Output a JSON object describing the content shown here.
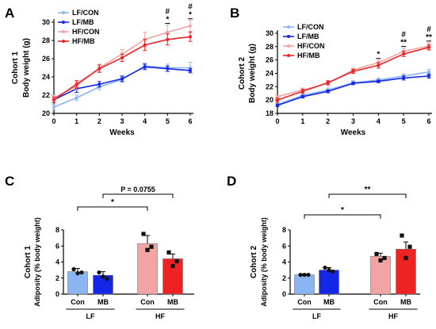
{
  "panel_labels": [
    "A",
    "B",
    "C",
    "D"
  ],
  "palette": {
    "LF/CON": "#8ab4f2",
    "LF/MB": "#1427e8",
    "HF/CON": "#f2a3a3",
    "HF/MB": "#ee2222"
  },
  "chart_data": [
    {
      "type": "line",
      "panel": "A",
      "ylabel_line1": "Cohort 1",
      "ylabel_line2": "Body weight (g)",
      "xlabel": "Weeks",
      "x": [
        0,
        1,
        2,
        3,
        4,
        5,
        6
      ],
      "xlim": [
        0,
        6
      ],
      "ylim": [
        20,
        30
      ],
      "yticks": [
        20,
        22,
        24,
        26,
        28,
        30
      ],
      "legend_position": "top-left",
      "series": [
        {
          "name": "LF/CON",
          "values": [
            20.7,
            21.7,
            22.9,
            23.7,
            25.2,
            25.0,
            25.0
          ],
          "err": [
            0.3,
            0.3,
            0.3,
            0.3,
            0.3,
            0.4,
            0.6
          ]
        },
        {
          "name": "LF/MB",
          "values": [
            21.5,
            22.7,
            23.2,
            23.8,
            25.1,
            24.9,
            24.7
          ],
          "err": [
            0.3,
            0.4,
            0.3,
            0.3,
            0.3,
            0.3,
            0.2
          ]
        },
        {
          "name": "HF/CON",
          "values": [
            21.7,
            23.0,
            25.0,
            26.5,
            28.1,
            28.9,
            29.6
          ],
          "err": [
            0.3,
            0.4,
            0.4,
            0.5,
            0.8,
            0.8,
            0.6
          ]
        },
        {
          "name": "HF/MB",
          "values": [
            21.5,
            23.2,
            24.9,
            26.1,
            27.5,
            28.1,
            28.4
          ],
          "err": [
            0.3,
            0.4,
            0.4,
            0.4,
            0.6,
            0.6,
            0.5
          ]
        }
      ],
      "annotations": [
        {
          "x": 5,
          "lines": [
            "#",
            "*"
          ]
        },
        {
          "x": 6,
          "lines": [
            "#",
            "*"
          ]
        }
      ]
    },
    {
      "type": "line",
      "panel": "B",
      "ylabel_line1": "Cohort 2",
      "ylabel_line2": "Body weight (g)",
      "xlabel": "Weeks",
      "x": [
        0,
        1,
        2,
        3,
        4,
        5,
        6
      ],
      "xlim": [
        0,
        6
      ],
      "ylim": [
        18,
        30
      ],
      "yticks": [
        18,
        20,
        22,
        24,
        26,
        28,
        30
      ],
      "legend_position": "top-left",
      "series": [
        {
          "name": "LF/CON",
          "values": [
            19.3,
            20.7,
            21.5,
            22.6,
            23.0,
            23.6,
            24.2
          ],
          "err": [
            0.2,
            0.3,
            0.3,
            0.3,
            0.3,
            0.3,
            0.4
          ]
        },
        {
          "name": "LF/MB",
          "values": [
            19.2,
            20.5,
            21.3,
            22.5,
            22.8,
            23.3,
            23.6
          ],
          "err": [
            0.2,
            0.2,
            0.2,
            0.2,
            0.2,
            0.3,
            0.3
          ]
        },
        {
          "name": "HF/CON",
          "values": [
            20.5,
            21.5,
            22.5,
            24.5,
            25.6,
            27.3,
            28.1
          ],
          "err": [
            0.2,
            0.3,
            0.3,
            0.3,
            0.4,
            0.5,
            0.5
          ]
        },
        {
          "name": "HF/MB",
          "values": [
            20.0,
            21.3,
            22.6,
            24.3,
            25.2,
            26.9,
            27.9
          ],
          "err": [
            0.3,
            0.3,
            0.3,
            0.3,
            0.4,
            0.4,
            0.4
          ]
        }
      ],
      "annotations": [
        {
          "x": 4,
          "lines": [
            "*"
          ]
        },
        {
          "x": 5,
          "lines": [
            "#",
            "**"
          ]
        },
        {
          "x": 6,
          "lines": [
            "#",
            "**"
          ]
        }
      ]
    },
    {
      "type": "bar",
      "panel": "C",
      "ylabel_line1": "Cohort 1",
      "ylabel_line2": "Adiposity (% body weight)",
      "categories": [
        "Con",
        "MB",
        "Con",
        "MB"
      ],
      "groups": [
        "LF",
        "HF"
      ],
      "series_names": [
        "LF/CON",
        "LF/MB",
        "HF/CON",
        "HF/MB"
      ],
      "values": [
        2.8,
        2.35,
        6.3,
        4.4
      ],
      "err": [
        0.4,
        0.45,
        1.0,
        0.6
      ],
      "points": [
        [
          3.1,
          2.6,
          2.7
        ],
        [
          2.7,
          2.2,
          1.9
        ],
        [
          7.5,
          5.5,
          5.9
        ],
        [
          5.2,
          3.5,
          4.1
        ]
      ],
      "ylim": [
        0,
        8
      ],
      "yticks": [
        0,
        2,
        4,
        6,
        8
      ],
      "brackets": [
        {
          "from": 0,
          "to": 2,
          "label": "*",
          "level": 1
        },
        {
          "from": 1,
          "to": 3,
          "label": "P = 0.0755",
          "level": 2
        }
      ]
    },
    {
      "type": "bar",
      "panel": "D",
      "ylabel_line1": "Cohort 2",
      "ylabel_line2": "Adiposity (% body weight)",
      "categories": [
        "Con",
        "MB",
        "Con",
        "MB"
      ],
      "groups": [
        "LF",
        "HF"
      ],
      "series_names": [
        "LF/CON",
        "LF/MB",
        "HF/CON",
        "HF/MB"
      ],
      "values": [
        2.4,
        3.0,
        4.7,
        5.6
      ],
      "err": [
        0.1,
        0.3,
        0.4,
        0.9
      ],
      "points": [
        [
          2.4,
          2.4,
          2.4
        ],
        [
          3.3,
          3.0,
          2.8
        ],
        [
          5.0,
          4.2,
          4.5
        ],
        [
          7.3,
          4.5,
          5.9
        ]
      ],
      "ylim": [
        0,
        8
      ],
      "yticks": [
        0,
        2,
        4,
        6,
        8
      ],
      "brackets": [
        {
          "from": 0,
          "to": 2,
          "label": "*",
          "level": 1
        },
        {
          "from": 1,
          "to": 3,
          "label": "**",
          "level": 2
        }
      ]
    }
  ]
}
